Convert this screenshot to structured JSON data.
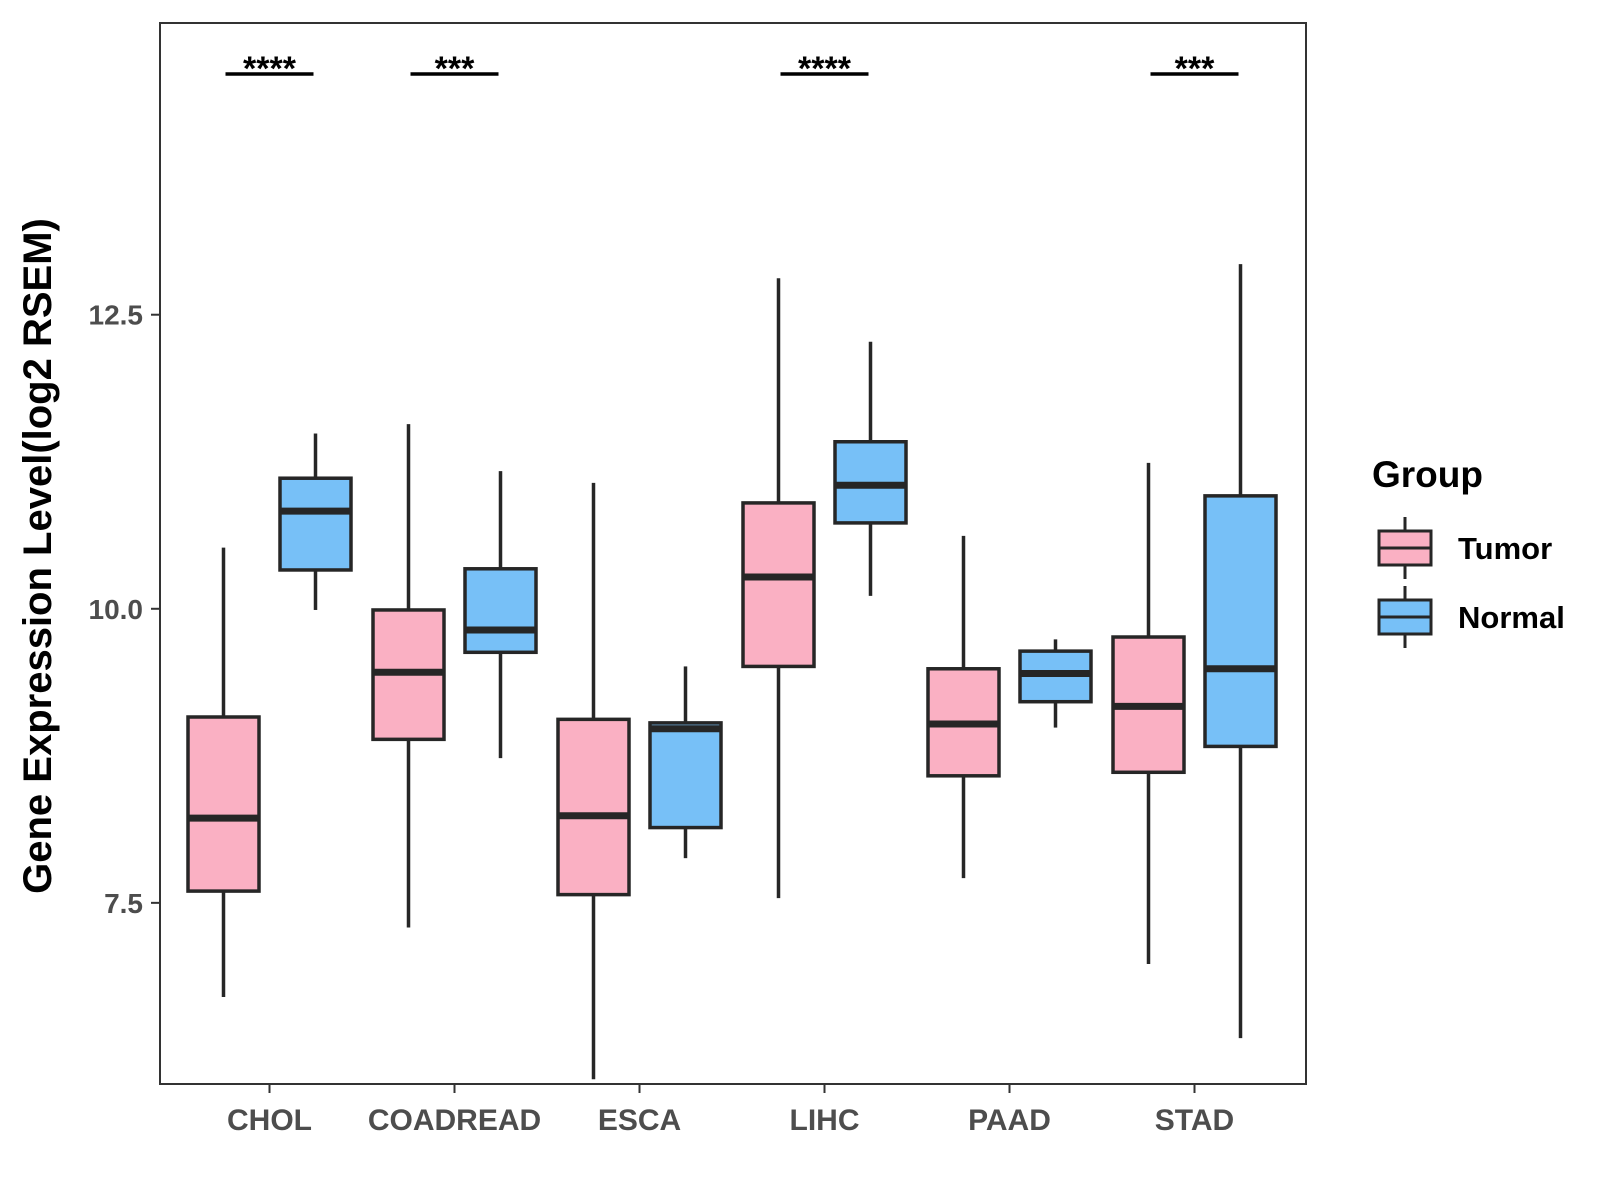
{
  "chart_data": {
    "type": "boxplot",
    "title": "",
    "xlabel": "",
    "ylabel": "Gene Expression Level(log2 RSEM)",
    "ylim": [
      5.96,
      14.98
    ],
    "yticks": [
      7.5,
      10.0,
      12.5
    ],
    "ytick_labels": [
      "7.5",
      "10.0",
      "12.5"
    ],
    "categories": [
      "CHOL",
      "COADREAD",
      "ESCA",
      "LIHC",
      "PAAD",
      "STAD"
    ],
    "legend": {
      "title": "Group",
      "position": "right",
      "entries": [
        {
          "name": "Tumor",
          "color": "#fab0c3"
        },
        {
          "name": "Normal",
          "color": "#77c0f7"
        }
      ]
    },
    "series": [
      {
        "name": "Tumor",
        "color": "#fab0c3",
        "boxes": [
          {
            "category": "CHOL",
            "whisker_low": 6.7,
            "q1": 7.6,
            "median": 8.22,
            "q3": 9.08,
            "whisker_high": 10.52
          },
          {
            "category": "COADREAD",
            "whisker_low": 7.29,
            "q1": 8.89,
            "median": 9.46,
            "q3": 9.99,
            "whisker_high": 11.57
          },
          {
            "category": "ESCA",
            "whisker_low": 6.0,
            "q1": 7.57,
            "median": 8.24,
            "q3": 9.06,
            "whisker_high": 11.07
          },
          {
            "category": "LIHC",
            "whisker_low": 7.54,
            "q1": 9.51,
            "median": 10.27,
            "q3": 10.9,
            "whisker_high": 12.81
          },
          {
            "category": "PAAD",
            "whisker_low": 7.71,
            "q1": 8.58,
            "median": 9.02,
            "q3": 9.49,
            "whisker_high": 10.62
          },
          {
            "category": "STAD",
            "whisker_low": 6.98,
            "q1": 8.61,
            "median": 9.17,
            "q3": 9.76,
            "whisker_high": 11.24
          }
        ]
      },
      {
        "name": "Normal",
        "color": "#77c0f7",
        "boxes": [
          {
            "category": "CHOL",
            "whisker_low": 9.99,
            "q1": 10.33,
            "median": 10.83,
            "q3": 11.11,
            "whisker_high": 11.49
          },
          {
            "category": "COADREAD",
            "whisker_low": 8.73,
            "q1": 9.63,
            "median": 9.82,
            "q3": 10.34,
            "whisker_high": 11.17
          },
          {
            "category": "ESCA",
            "whisker_low": 7.88,
            "q1": 8.14,
            "median": 8.98,
            "q3": 9.03,
            "whisker_high": 9.51
          },
          {
            "category": "LIHC",
            "whisker_low": 10.11,
            "q1": 10.73,
            "median": 11.05,
            "q3": 11.42,
            "whisker_high": 12.27
          },
          {
            "category": "PAAD",
            "whisker_low": 8.99,
            "q1": 9.21,
            "median": 9.45,
            "q3": 9.64,
            "whisker_high": 9.74
          },
          {
            "category": "STAD",
            "whisker_low": 6.35,
            "q1": 8.83,
            "median": 9.49,
            "q3": 10.96,
            "whisker_high": 12.93
          }
        ]
      }
    ],
    "annotations": [
      {
        "category": "CHOL",
        "label": "****"
      },
      {
        "category": "COADREAD",
        "label": "***"
      },
      {
        "category": "LIHC",
        "label": "****"
      },
      {
        "category": "STAD",
        "label": "***"
      }
    ],
    "grid": false
  }
}
